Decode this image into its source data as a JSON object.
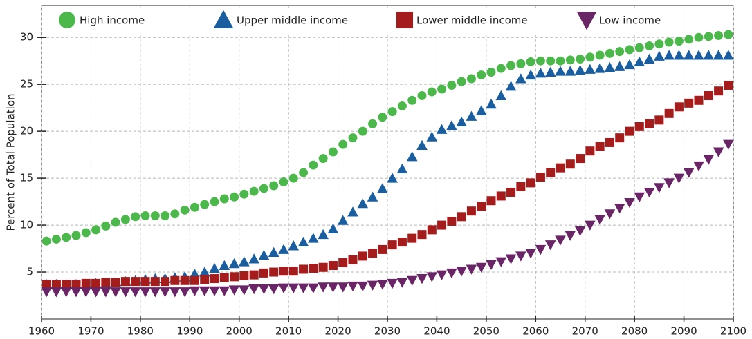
{
  "chart_data": {
    "type": "scatter",
    "y_label": "Percent of Total Population",
    "x": [
      1961,
      1963,
      1965,
      1967,
      1969,
      1971,
      1973,
      1975,
      1977,
      1979,
      1981,
      1983,
      1985,
      1987,
      1989,
      1991,
      1993,
      1995,
      1997,
      1999,
      2001,
      2003,
      2005,
      2007,
      2009,
      2011,
      2013,
      2015,
      2017,
      2019,
      2021,
      2023,
      2025,
      2027,
      2029,
      2031,
      2033,
      2035,
      2037,
      2039,
      2041,
      2043,
      2045,
      2047,
      2049,
      2051,
      2053,
      2055,
      2057,
      2059,
      2061,
      2063,
      2065,
      2067,
      2069,
      2071,
      2073,
      2075,
      2077,
      2079,
      2081,
      2083,
      2085,
      2087,
      2089,
      2091,
      2093,
      2095,
      2097,
      2099
    ],
    "series": [
      {
        "name": "High income",
        "color": "#4cb84c",
        "marker": "circle",
        "values": [
          8.3,
          8.5,
          8.7,
          8.9,
          9.2,
          9.5,
          9.9,
          10.3,
          10.6,
          10.9,
          11.0,
          11.0,
          11.0,
          11.2,
          11.6,
          11.9,
          12.2,
          12.5,
          12.8,
          13.0,
          13.3,
          13.6,
          13.9,
          14.2,
          14.6,
          15.0,
          15.6,
          16.4,
          17.1,
          17.8,
          18.6,
          19.3,
          20.0,
          20.8,
          21.5,
          22.1,
          22.7,
          23.3,
          23.8,
          24.2,
          24.5,
          24.9,
          25.3,
          25.6,
          26.0,
          26.3,
          26.7,
          27.0,
          27.2,
          27.4,
          27.5,
          27.5,
          27.5,
          27.6,
          27.7,
          27.9,
          28.1,
          28.3,
          28.5,
          28.7,
          28.9,
          29.1,
          29.3,
          29.5,
          29.6,
          29.8,
          30.0,
          30.1,
          30.2,
          30.3
        ]
      },
      {
        "name": "Upper middle income",
        "color": "#1a5ea0",
        "marker": "triangle-up",
        "values": [
          3.7,
          3.7,
          3.7,
          3.7,
          3.7,
          3.8,
          3.8,
          3.9,
          4.0,
          4.1,
          4.2,
          4.3,
          4.3,
          4.4,
          4.5,
          4.8,
          5.0,
          5.4,
          5.7,
          5.9,
          6.1,
          6.4,
          6.8,
          7.1,
          7.4,
          7.8,
          8.2,
          8.6,
          9.0,
          9.6,
          10.5,
          11.4,
          12.3,
          13.0,
          13.9,
          15.0,
          16.0,
          17.3,
          18.5,
          19.4,
          20.2,
          20.6,
          21.0,
          21.6,
          22.2,
          22.9,
          23.8,
          24.8,
          25.6,
          26.0,
          26.2,
          26.3,
          26.4,
          26.4,
          26.5,
          26.6,
          26.7,
          26.8,
          26.9,
          27.1,
          27.4,
          27.7,
          28.0,
          28.1,
          28.1,
          28.1,
          28.1,
          28.1,
          28.1,
          28.1
        ]
      },
      {
        "name": "Lower middle income",
        "color": "#a51c1c",
        "marker": "square",
        "values": [
          3.7,
          3.7,
          3.7,
          3.7,
          3.8,
          3.8,
          3.9,
          3.9,
          4.0,
          4.0,
          4.0,
          4.0,
          4.0,
          4.1,
          4.1,
          4.1,
          4.2,
          4.3,
          4.4,
          4.5,
          4.6,
          4.7,
          4.9,
          5.0,
          5.1,
          5.1,
          5.3,
          5.4,
          5.5,
          5.7,
          6.0,
          6.3,
          6.7,
          7.0,
          7.4,
          7.9,
          8.2,
          8.6,
          9.0,
          9.5,
          10.0,
          10.4,
          10.9,
          11.5,
          12.0,
          12.6,
          13.1,
          13.5,
          14.1,
          14.5,
          15.1,
          15.6,
          16.1,
          16.5,
          17.1,
          17.9,
          18.4,
          18.8,
          19.3,
          20.0,
          20.5,
          20.8,
          21.2,
          21.9,
          22.6,
          23.0,
          23.3,
          23.8,
          24.3,
          24.9
        ]
      },
      {
        "name": "Low income",
        "color": "#6a2566",
        "marker": "triangle-down",
        "values": [
          2.9,
          2.9,
          2.9,
          2.9,
          2.9,
          2.9,
          2.9,
          2.9,
          2.9,
          2.9,
          2.9,
          2.9,
          2.9,
          2.9,
          2.9,
          3.0,
          3.0,
          3.0,
          3.0,
          3.1,
          3.1,
          3.2,
          3.2,
          3.2,
          3.3,
          3.3,
          3.3,
          3.3,
          3.4,
          3.4,
          3.4,
          3.5,
          3.5,
          3.6,
          3.7,
          3.8,
          3.9,
          4.1,
          4.3,
          4.5,
          4.7,
          4.9,
          5.1,
          5.3,
          5.5,
          5.8,
          6.1,
          6.4,
          6.7,
          7.0,
          7.4,
          7.9,
          8.4,
          8.9,
          9.4,
          10.0,
          10.6,
          11.2,
          11.8,
          12.4,
          13.0,
          13.5,
          14.0,
          14.5,
          15.0,
          15.6,
          16.3,
          17.0,
          17.8,
          18.6
        ]
      }
    ],
    "xlim": [
      1960,
      2100
    ],
    "xticks": [
      1960,
      1970,
      1980,
      1990,
      2000,
      2010,
      2020,
      2030,
      2040,
      2050,
      2060,
      2070,
      2080,
      2090,
      2100
    ],
    "ylim": [
      0,
      33.4
    ],
    "yticks": [
      5,
      10,
      15,
      20,
      25,
      30
    ],
    "grid": true,
    "legend": "top"
  }
}
